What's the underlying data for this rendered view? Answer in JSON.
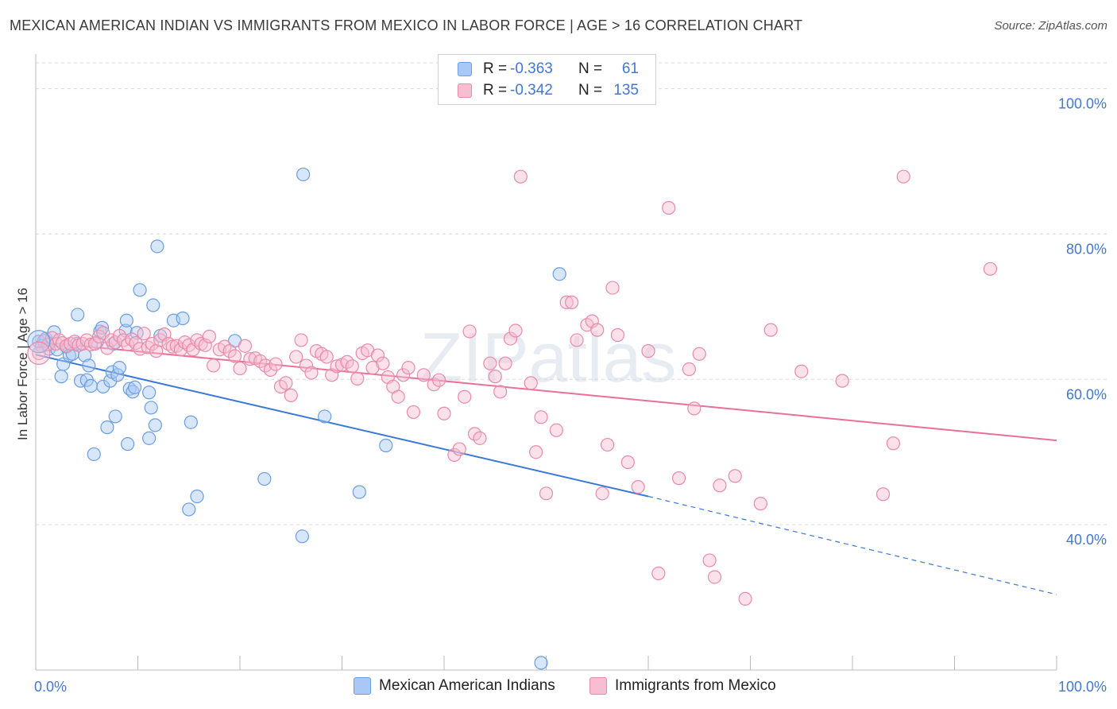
{
  "title": "MEXICAN AMERICAN INDIAN VS IMMIGRANTS FROM MEXICO IN LABOR FORCE | AGE > 16 CORRELATION CHART",
  "source": "Source: ZipAtlas.com",
  "watermark": "ZIPatlas",
  "legend": {
    "rows": [
      {
        "r_label": "R =",
        "r_value": "-0.363",
        "n_label": "N =",
        "n_value": "61",
        "color": "#a9c8f5",
        "border": "#6a9ee0"
      },
      {
        "r_label": "R =",
        "r_value": "-0.342",
        "n_label": "N =",
        "n_value": "135",
        "color": "#f7bdd0",
        "border": "#e88aa8"
      }
    ]
  },
  "bottom_legend": [
    {
      "label": "Mexican American Indians",
      "color": "#a9c8f5",
      "border": "#6a9ee0"
    },
    {
      "label": "Immigrants from Mexico",
      "color": "#f7bdd0",
      "border": "#e88aa8"
    }
  ],
  "chart_data": {
    "type": "scatter",
    "title": "MEXICAN AMERICAN INDIAN VS IMMIGRANTS FROM MEXICO IN LABOR FORCE | AGE > 16 CORRELATION CHART",
    "xlabel": "",
    "ylabel": "In Labor Force | Age > 16",
    "xlim": [
      0,
      100
    ],
    "ylim": [
      20,
      104
    ],
    "x_tick_labels": [
      "0.0%",
      "100.0%"
    ],
    "y_ticks": [
      40,
      60,
      80,
      100
    ],
    "y_tick_labels": [
      "40.0%",
      "60.0%",
      "80.0%",
      "100.0%"
    ],
    "grid": true,
    "legend_position": "top-center",
    "series": [
      {
        "name": "Mexican American Indians",
        "color": "#6a9ee0",
        "fill": "#a9c8f5",
        "trend": {
          "x0": 0,
          "y0": 63.4,
          "x1": 60,
          "y1": 43.9,
          "dash_to_x": 100,
          "dash_to_y": 30.4
        },
        "points": [
          [
            0.3,
            65.2
          ],
          [
            0.6,
            64.6
          ],
          [
            1.0,
            65.6
          ],
          [
            1.3,
            64.2
          ],
          [
            1.8,
            66.5
          ],
          [
            2.1,
            64.1
          ],
          [
            2.5,
            60.4
          ],
          [
            2.7,
            62.1
          ],
          [
            3.0,
            64.5
          ],
          [
            3.3,
            63.3
          ],
          [
            3.6,
            63.5
          ],
          [
            4.0,
            64.9
          ],
          [
            4.1,
            68.9
          ],
          [
            4.4,
            59.8
          ],
          [
            4.8,
            63.3
          ],
          [
            5.0,
            59.9
          ],
          [
            5.2,
            61.9
          ],
          [
            5.4,
            59.1
          ],
          [
            5.7,
            49.7
          ],
          [
            6.0,
            65.1
          ],
          [
            6.3,
            66.6
          ],
          [
            6.5,
            67.1
          ],
          [
            6.6,
            59.0
          ],
          [
            7.0,
            53.4
          ],
          [
            7.3,
            59.8
          ],
          [
            7.5,
            61.0
          ],
          [
            7.6,
            64.9
          ],
          [
            7.8,
            54.9
          ],
          [
            8.0,
            60.6
          ],
          [
            8.2,
            61.6
          ],
          [
            8.8,
            66.7
          ],
          [
            8.9,
            68.1
          ],
          [
            9.0,
            51.1
          ],
          [
            9.2,
            58.7
          ],
          [
            9.5,
            58.3
          ],
          [
            9.7,
            58.9
          ],
          [
            9.9,
            66.4
          ],
          [
            10.2,
            72.3
          ],
          [
            11.1,
            58.2
          ],
          [
            11.1,
            51.9
          ],
          [
            11.3,
            56.1
          ],
          [
            11.5,
            70.2
          ],
          [
            11.7,
            53.7
          ],
          [
            11.9,
            78.3
          ],
          [
            12.2,
            66.0
          ],
          [
            13.5,
            68.1
          ],
          [
            14.4,
            68.4
          ],
          [
            15.0,
            42.1
          ],
          [
            15.2,
            54.1
          ],
          [
            15.8,
            43.9
          ],
          [
            19.5,
            65.3
          ],
          [
            22.4,
            46.3
          ],
          [
            26.1,
            38.4
          ],
          [
            26.2,
            88.2
          ],
          [
            28.3,
            54.9
          ],
          [
            31.7,
            44.5
          ],
          [
            34.3,
            50.9
          ],
          [
            49.5,
            21.0
          ],
          [
            51.3,
            74.5
          ]
        ]
      },
      {
        "name": "Immigrants from Mexico",
        "color": "#e88aa8",
        "fill": "#f7bdd0",
        "trend": {
          "x0": 0,
          "y0": 65.2,
          "x1": 100,
          "y1": 51.6
        },
        "points": [
          [
            0.3,
            63.6
          ],
          [
            0.8,
            65.3
          ],
          [
            1.2,
            64.8
          ],
          [
            1.6,
            65.7
          ],
          [
            2.0,
            64.9
          ],
          [
            2.3,
            65.4
          ],
          [
            2.6,
            65.0
          ],
          [
            3.0,
            64.6
          ],
          [
            3.4,
            64.9
          ],
          [
            3.8,
            65.2
          ],
          [
            4.2,
            64.7
          ],
          [
            4.6,
            64.9
          ],
          [
            5.0,
            65.4
          ],
          [
            5.4,
            64.8
          ],
          [
            5.8,
            64.9
          ],
          [
            6.2,
            65.9
          ],
          [
            6.6,
            66.4
          ],
          [
            7.0,
            64.3
          ],
          [
            7.4,
            65.4
          ],
          [
            7.8,
            65.1
          ],
          [
            8.2,
            66.0
          ],
          [
            8.6,
            65.4
          ],
          [
            9.0,
            64.8
          ],
          [
            9.4,
            65.5
          ],
          [
            9.8,
            65.0
          ],
          [
            10.2,
            64.2
          ],
          [
            10.6,
            66.3
          ],
          [
            11.0,
            64.4
          ],
          [
            11.4,
            64.9
          ],
          [
            11.8,
            63.9
          ],
          [
            12.2,
            65.4
          ],
          [
            12.6,
            66.2
          ],
          [
            13.0,
            64.9
          ],
          [
            13.4,
            64.5
          ],
          [
            13.8,
            64.6
          ],
          [
            14.2,
            64.1
          ],
          [
            14.6,
            65.1
          ],
          [
            15.0,
            64.7
          ],
          [
            15.4,
            64.1
          ],
          [
            15.8,
            65.4
          ],
          [
            16.2,
            64.9
          ],
          [
            16.6,
            64.7
          ],
          [
            17.0,
            65.9
          ],
          [
            17.4,
            61.9
          ],
          [
            18.0,
            64.1
          ],
          [
            18.5,
            64.5
          ],
          [
            19.0,
            63.9
          ],
          [
            19.5,
            63.2
          ],
          [
            20.0,
            61.5
          ],
          [
            20.5,
            64.6
          ],
          [
            21.0,
            62.8
          ],
          [
            21.5,
            62.9
          ],
          [
            22.0,
            62.5
          ],
          [
            22.5,
            61.9
          ],
          [
            23.0,
            61.3
          ],
          [
            23.5,
            62.1
          ],
          [
            24.0,
            59.0
          ],
          [
            24.5,
            59.5
          ],
          [
            25.0,
            57.8
          ],
          [
            25.5,
            63.1
          ],
          [
            26.0,
            65.4
          ],
          [
            26.5,
            61.9
          ],
          [
            27.0,
            60.9
          ],
          [
            27.5,
            63.9
          ],
          [
            28.0,
            63.5
          ],
          [
            28.5,
            63.1
          ],
          [
            29.0,
            60.6
          ],
          [
            29.5,
            61.8
          ],
          [
            30.0,
            62.0
          ],
          [
            30.5,
            62.4
          ],
          [
            31.0,
            61.8
          ],
          [
            31.5,
            60.1
          ],
          [
            32.0,
            63.6
          ],
          [
            32.5,
            64.0
          ],
          [
            33.0,
            61.6
          ],
          [
            33.5,
            63.3
          ],
          [
            34.0,
            62.2
          ],
          [
            34.5,
            60.3
          ],
          [
            35.0,
            59.0
          ],
          [
            35.5,
            57.6
          ],
          [
            36.0,
            60.6
          ],
          [
            36.5,
            61.6
          ],
          [
            37.0,
            55.5
          ],
          [
            38.0,
            60.6
          ],
          [
            39.0,
            59.3
          ],
          [
            39.5,
            59.9
          ],
          [
            40.0,
            55.3
          ],
          [
            41.0,
            49.6
          ],
          [
            41.5,
            50.4
          ],
          [
            42.0,
            57.6
          ],
          [
            42.5,
            66.6
          ],
          [
            43.0,
            52.5
          ],
          [
            43.5,
            51.9
          ],
          [
            44.5,
            62.2
          ],
          [
            45.0,
            60.4
          ],
          [
            45.5,
            58.3
          ],
          [
            46.0,
            62.2
          ],
          [
            46.5,
            65.6
          ],
          [
            47.0,
            66.7
          ],
          [
            47.5,
            87.9
          ],
          [
            48.5,
            59.5
          ],
          [
            49.0,
            50.0
          ],
          [
            49.5,
            54.8
          ],
          [
            50.0,
            44.3
          ],
          [
            51.0,
            53.0
          ],
          [
            52.0,
            70.6
          ],
          [
            52.5,
            70.6
          ],
          [
            53.0,
            65.4
          ],
          [
            54.0,
            67.5
          ],
          [
            54.5,
            68.0
          ],
          [
            55.0,
            66.8
          ],
          [
            55.5,
            44.3
          ],
          [
            56.0,
            51.0
          ],
          [
            56.5,
            72.6
          ],
          [
            57.0,
            66.1
          ],
          [
            58.0,
            48.6
          ],
          [
            59.0,
            45.2
          ],
          [
            60.0,
            63.9
          ],
          [
            61.0,
            33.3
          ],
          [
            62.0,
            83.6
          ],
          [
            63.0,
            46.4
          ],
          [
            64.0,
            61.4
          ],
          [
            64.5,
            56.0
          ],
          [
            65.0,
            63.5
          ],
          [
            66.0,
            35.1
          ],
          [
            66.5,
            32.8
          ],
          [
            67.0,
            45.4
          ],
          [
            68.5,
            46.7
          ],
          [
            69.5,
            29.8
          ],
          [
            71.0,
            42.9
          ],
          [
            72.0,
            66.8
          ],
          [
            75.0,
            61.1
          ],
          [
            79.0,
            59.8
          ],
          [
            83.0,
            44.2
          ],
          [
            84.0,
            51.2
          ],
          [
            85.0,
            87.9
          ],
          [
            93.5,
            75.2
          ]
        ]
      }
    ]
  }
}
